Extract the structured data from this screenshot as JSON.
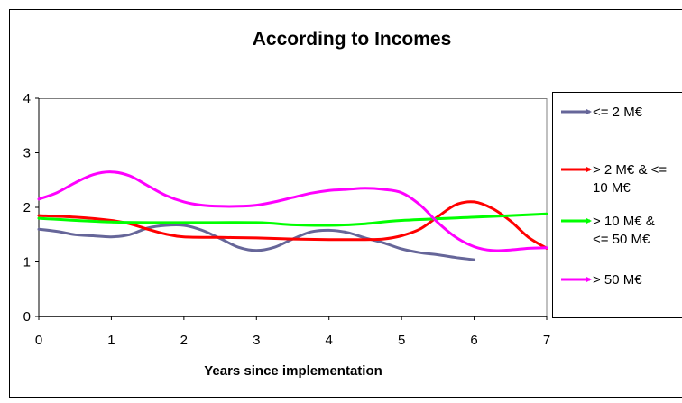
{
  "chart_data": {
    "type": "line",
    "title": "According to Incomes",
    "xlabel": "Years since implementation",
    "ylabel": "",
    "xlim": [
      0,
      7
    ],
    "ylim": [
      0,
      4
    ],
    "x_ticks": [
      "0",
      "1",
      "2",
      "3",
      "4",
      "5",
      "6",
      "7"
    ],
    "y_ticks": [
      "0",
      "1",
      "2",
      "3",
      "4"
    ],
    "grid": false,
    "legend_position": "right",
    "series": [
      {
        "name": "<= 2 M€",
        "legend_lines": [
          "<= 2 M€"
        ],
        "color": "#666699",
        "x": [
          0,
          0.25,
          0.5,
          0.75,
          1,
          1.25,
          1.5,
          1.75,
          2,
          2.25,
          2.5,
          2.75,
          3,
          3.25,
          3.5,
          3.75,
          4,
          4.25,
          4.5,
          4.75,
          5,
          5.25,
          5.5,
          5.75,
          6
        ],
        "y": [
          1.6,
          1.56,
          1.5,
          1.48,
          1.46,
          1.5,
          1.62,
          1.67,
          1.67,
          1.58,
          1.43,
          1.27,
          1.21,
          1.27,
          1.42,
          1.55,
          1.58,
          1.54,
          1.44,
          1.35,
          1.24,
          1.17,
          1.13,
          1.08,
          1.04
        ]
      },
      {
        "name": "> 2 M€ & <= 10 M€",
        "legend_lines": [
          "> 2 M€ & <=",
          "10 M€"
        ],
        "color": "#ff0000",
        "x": [
          0,
          0.5,
          1,
          1.25,
          1.5,
          1.75,
          2,
          2.5,
          3,
          3.5,
          4,
          4.5,
          4.75,
          5,
          5.25,
          5.5,
          5.75,
          6,
          6.25,
          6.5,
          6.75,
          7
        ],
        "y": [
          1.85,
          1.82,
          1.76,
          1.7,
          1.6,
          1.51,
          1.46,
          1.45,
          1.44,
          1.42,
          1.41,
          1.41,
          1.42,
          1.48,
          1.6,
          1.83,
          2.05,
          2.1,
          1.98,
          1.75,
          1.45,
          1.25
        ]
      },
      {
        "name": "> 10 M€ & <= 50 M€",
        "legend_lines": [
          "> 10 M€ &",
          "<= 50 M€"
        ],
        "color": "#00ff00",
        "x": [
          0,
          1,
          2,
          3,
          3.5,
          4,
          4.5,
          5,
          6,
          7
        ],
        "y": [
          1.8,
          1.73,
          1.72,
          1.72,
          1.68,
          1.67,
          1.7,
          1.76,
          1.82,
          1.88
        ]
      },
      {
        "name": "> 50 M€",
        "legend_lines": [
          "> 50 M€"
        ],
        "color": "#ff00ff",
        "x": [
          0,
          0.25,
          0.5,
          0.75,
          1,
          1.25,
          1.5,
          1.75,
          2,
          2.25,
          2.5,
          2.75,
          3,
          3.25,
          3.5,
          3.75,
          4,
          4.25,
          4.5,
          4.75,
          5,
          5.25,
          5.5,
          5.75,
          6,
          6.25,
          6.5,
          6.75,
          7
        ],
        "y": [
          2.15,
          2.27,
          2.45,
          2.6,
          2.65,
          2.58,
          2.4,
          2.22,
          2.1,
          2.04,
          2.02,
          2.02,
          2.04,
          2.1,
          2.18,
          2.26,
          2.31,
          2.33,
          2.35,
          2.33,
          2.27,
          2.05,
          1.72,
          1.45,
          1.28,
          1.21,
          1.22,
          1.25,
          1.26
        ]
      }
    ]
  }
}
